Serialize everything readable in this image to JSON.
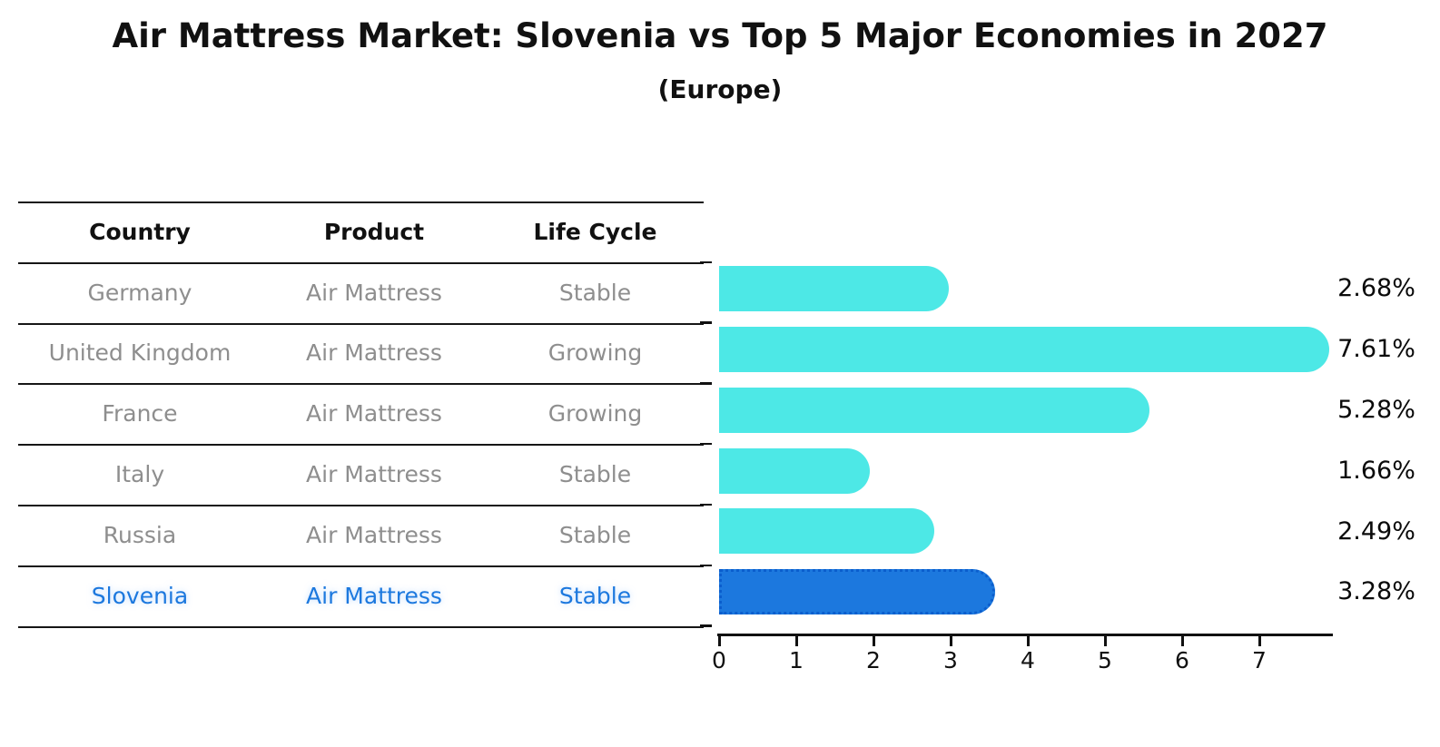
{
  "title": "Air Mattress Market: Slovenia vs Top 5 Major Economies in 2027",
  "subtitle": "(Europe)",
  "table": {
    "headers": [
      "Country",
      "Product",
      "Life Cycle"
    ],
    "rows": [
      {
        "country": "Germany",
        "product": "Air Mattress",
        "life_cycle": "Stable",
        "highlight": false
      },
      {
        "country": "United Kingdom",
        "product": "Air Mattress",
        "life_cycle": "Growing",
        "highlight": false
      },
      {
        "country": "France",
        "product": "Air Mattress",
        "life_cycle": "Growing",
        "highlight": false
      },
      {
        "country": "Italy",
        "product": "Air Mattress",
        "life_cycle": "Stable",
        "highlight": false
      },
      {
        "country": "Russia",
        "product": "Air Mattress",
        "life_cycle": "Stable",
        "highlight": true
      }
    ],
    "highlight_row": {
      "country": "Slovenia",
      "product": "Air Mattress",
      "life_cycle": "Stable",
      "highlight": true
    }
  },
  "chart_data": {
    "type": "bar",
    "orientation": "horizontal",
    "title": "Air Mattress Market: Slovenia vs Top 5 Major Economies in 2027",
    "subtitle": "(Europe)",
    "categories": [
      "Germany",
      "United Kingdom",
      "France",
      "Italy",
      "Russia",
      "Slovenia"
    ],
    "values": [
      2.68,
      7.61,
      5.28,
      1.66,
      2.49,
      3.28
    ],
    "value_labels": [
      "2.68%",
      "7.61%",
      "5.28%",
      "1.66%",
      "2.49%",
      "3.28%"
    ],
    "xlabel": "",
    "ylabel": "",
    "xlim": [
      0,
      7.95
    ],
    "x_ticks": [
      0,
      1,
      2,
      3,
      4,
      5,
      6,
      7
    ],
    "grid": false,
    "legend": "none",
    "bar_color": "#4DE8E6",
    "highlight_color": "#1C78DE",
    "highlight_index": 5,
    "value_label_position": "right-of-plot"
  },
  "colors": {
    "text_dark": "#111111",
    "text_gray": "#8E8E8E",
    "highlight_text": "#1C78DE",
    "bar_cyan": "#4DE8E6",
    "bar_blue": "#1C78DE",
    "axis": "#111111"
  }
}
